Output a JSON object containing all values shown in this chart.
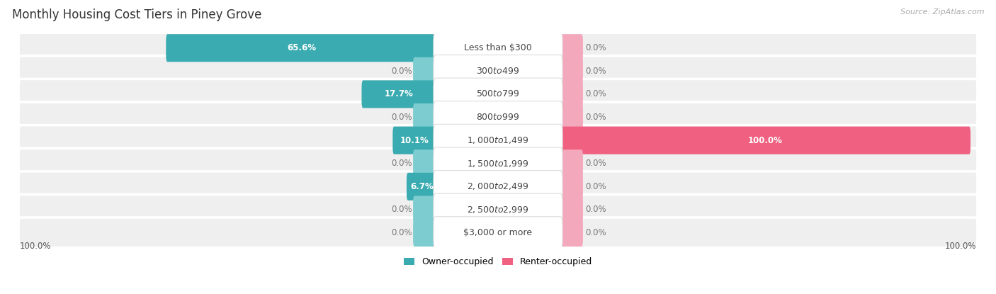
{
  "title": "Monthly Housing Cost Tiers in Piney Grove",
  "source": "Source: ZipAtlas.com",
  "categories": [
    "Less than $300",
    "$300 to $499",
    "$500 to $799",
    "$800 to $999",
    "$1,000 to $1,499",
    "$1,500 to $1,999",
    "$2,000 to $2,499",
    "$2,500 to $2,999",
    "$3,000 or more"
  ],
  "owner_values": [
    65.6,
    0.0,
    17.7,
    0.0,
    10.1,
    0.0,
    6.7,
    0.0,
    0.0
  ],
  "renter_values": [
    0.0,
    0.0,
    0.0,
    0.0,
    100.0,
    0.0,
    0.0,
    0.0,
    0.0
  ],
  "owner_color_dark": "#3aabb0",
  "owner_color_light": "#7dcdd0",
  "renter_color_dark": "#f06080",
  "renter_color_light": "#f4a8bc",
  "row_bg_color": "#efefef",
  "label_bg_color": "#ffffff",
  "row_sep_color": "#ffffff",
  "max_val": 100.0,
  "axis_label_left": "100.0%",
  "axis_label_right": "100.0%",
  "title_fontsize": 12,
  "source_fontsize": 8,
  "value_fontsize": 8.5,
  "cat_fontsize": 9,
  "legend_fontsize": 9
}
